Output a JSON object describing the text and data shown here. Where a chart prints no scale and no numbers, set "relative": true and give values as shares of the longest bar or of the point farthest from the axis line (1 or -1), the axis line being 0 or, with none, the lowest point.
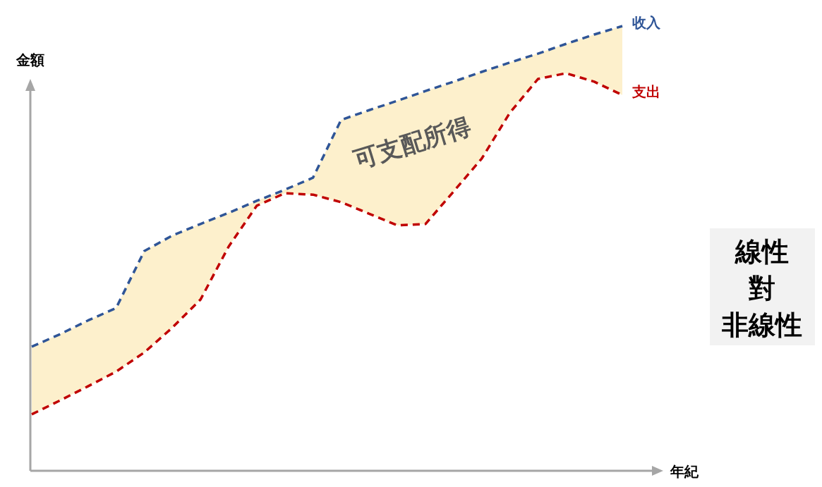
{
  "chart_data": {
    "type": "line",
    "relative": true,
    "xlabel": "年紀",
    "ylabel": "金額",
    "line_style": "dashed",
    "marker": "none",
    "categories": [
      null,
      null,
      null,
      null,
      null,
      null,
      null,
      null,
      null,
      null,
      null,
      null,
      null,
      null,
      null,
      null,
      null,
      null,
      null,
      null,
      null,
      null
    ],
    "series": [
      {
        "name": "收入",
        "color": "#2f5597",
        "values": [
          0.279,
          0.307,
          0.338,
          0.366,
          0.494,
          0.529,
          0.555,
          0.58,
          0.607,
          0.632,
          0.659,
          0.789,
          0.811,
          0.832,
          0.854,
          0.875,
          0.897,
          0.918,
          0.938,
          0.96,
          0.981,
          1
        ],
        "lower": [
          0.127,
          0.158,
          0.19,
          0.223,
          0.266,
          0.322,
          0.385,
          0.504,
          0.596,
          0.624,
          0.621,
          0.604,
          0.578,
          0.552,
          0.555,
          0.628,
          0.702,
          0.805,
          0.881,
          0.894,
          0.875,
          0.845
        ],
        "upper": [
          0.279,
          0.307,
          0.338,
          0.366,
          0.494,
          0.529,
          0.555,
          0.58,
          0.607,
          0.632,
          0.659,
          0.789,
          0.811,
          0.832,
          0.854,
          0.875,
          0.897,
          0.918,
          0.938,
          0.96,
          0.981,
          1
        ]
      },
      {
        "name": "支出",
        "color": "#c00000",
        "values": [
          0.127,
          0.158,
          0.19,
          0.223,
          0.266,
          0.322,
          0.385,
          0.504,
          0.596,
          0.624,
          0.621,
          0.604,
          0.578,
          0.552,
          0.555,
          0.628,
          0.702,
          0.805,
          0.881,
          0.894,
          0.875,
          0.845
        ]
      }
    ],
    "annotations": [
      "可支配所得",
      "線性",
      "對",
      "非線性"
    ]
  }
}
